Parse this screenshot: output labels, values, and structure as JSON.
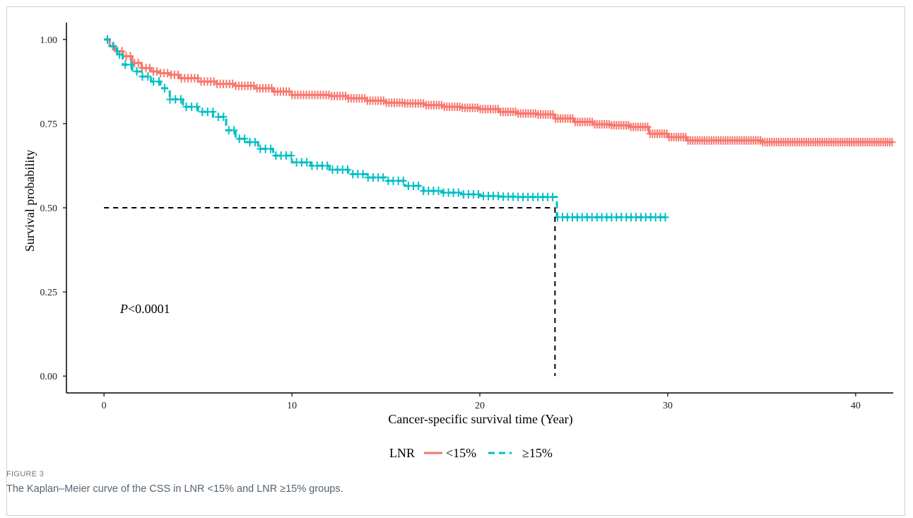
{
  "figure": {
    "label": "FIGURE 3",
    "caption": "The Kaplan–Meier curve of the CSS in LNR <15% and LNR ≥15% groups."
  },
  "chart_data": {
    "type": "line",
    "subtype": "kaplan-meier",
    "xlabel": "Cancer-specific survival time (Year)",
    "ylabel": "Survival probability",
    "xlim": [
      -2,
      42
    ],
    "ylim": [
      -0.05,
      1.05
    ],
    "x_ticks": [
      0,
      10,
      20,
      30,
      40
    ],
    "y_ticks": [
      0.0,
      0.25,
      0.5,
      0.75,
      1.0
    ],
    "y_tick_labels": [
      "0.00",
      "0.25",
      "0.50",
      "0.75",
      "1.00"
    ],
    "grid": false,
    "annotation": {
      "italic": "P",
      "text": "<0.0001",
      "x": 0.9,
      "y": 0.2
    },
    "median_line": {
      "y": 0.5,
      "x": 24.0,
      "color": "#000000",
      "style": "dashed"
    },
    "legend": {
      "title": "LNR",
      "position": "bottom",
      "entries": [
        "<15%",
        "≥15%"
      ]
    },
    "series": [
      {
        "name": "<15%",
        "color": "#f8766d",
        "style": "solid",
        "x": [
          0,
          0.3,
          0.6,
          1.0,
          1.5,
          2,
          2.5,
          3,
          3.5,
          4,
          5,
          6,
          7,
          8,
          9,
          10,
          12,
          13,
          14,
          15,
          16,
          17,
          18,
          19,
          20,
          21,
          22,
          23,
          24,
          25,
          26,
          27,
          28,
          29,
          30,
          31,
          35,
          40,
          42
        ],
        "y": [
          1.0,
          0.98,
          0.965,
          0.95,
          0.93,
          0.915,
          0.905,
          0.9,
          0.895,
          0.885,
          0.875,
          0.868,
          0.862,
          0.855,
          0.845,
          0.835,
          0.832,
          0.825,
          0.818,
          0.812,
          0.81,
          0.805,
          0.8,
          0.797,
          0.793,
          0.785,
          0.78,
          0.777,
          0.765,
          0.755,
          0.748,
          0.745,
          0.74,
          0.72,
          0.71,
          0.7,
          0.695,
          0.695,
          0.695
        ]
      },
      {
        "name": "≥15%",
        "color": "#00bfc4",
        "style": "dashed",
        "x": [
          0,
          0.3,
          0.7,
          1.0,
          1.5,
          2.0,
          2.5,
          3.0,
          3.5,
          4.2,
          5.0,
          5.8,
          6.5,
          7.0,
          7.5,
          8.2,
          9.0,
          10.0,
          11.0,
          12.0,
          13.0,
          14.0,
          15.0,
          16.0,
          17.0,
          18.0,
          19.0,
          20.0,
          21.0,
          22.0,
          23.0,
          24.0,
          24.1,
          26.0,
          28.0,
          30.0
        ],
        "y": [
          1.0,
          0.98,
          0.955,
          0.925,
          0.905,
          0.89,
          0.875,
          0.855,
          0.822,
          0.8,
          0.785,
          0.77,
          0.73,
          0.705,
          0.695,
          0.675,
          0.655,
          0.635,
          0.625,
          0.613,
          0.6,
          0.59,
          0.58,
          0.565,
          0.55,
          0.545,
          0.54,
          0.535,
          0.533,
          0.532,
          0.532,
          0.532,
          0.472,
          0.472,
          0.472,
          0.472
        ]
      }
    ]
  }
}
